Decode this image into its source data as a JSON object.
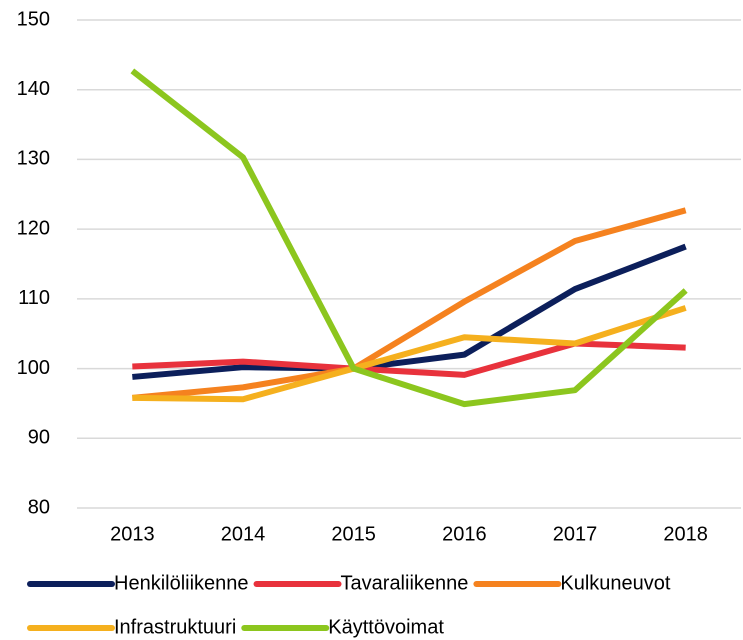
{
  "chart_data": {
    "type": "line",
    "categories": [
      "2013",
      "2014",
      "2015",
      "2016",
      "2017",
      "2018"
    ],
    "series": [
      {
        "name": "Henkilöliikenne",
        "color": "#0c1f5b",
        "values": [
          98.8,
          100.2,
          100,
          102,
          111.4,
          117.5
        ]
      },
      {
        "name": "Tavaraliikenne",
        "color": "#e8323c",
        "values": [
          100.3,
          101,
          100,
          99.1,
          103.6,
          103
        ]
      },
      {
        "name": "Kulkuneuvot",
        "color": "#f5821f",
        "values": [
          95.8,
          97.3,
          100,
          109.6,
          118.3,
          122.7
        ]
      },
      {
        "name": "Infrastruktuuri",
        "color": "#f5b01e",
        "values": [
          95.8,
          95.6,
          100,
          104.5,
          103.6,
          108.7
        ]
      },
      {
        "name": "Käyttövoimat",
        "color": "#8cc61e",
        "values": [
          142.7,
          130.3,
          100,
          94.9,
          96.9,
          111.2
        ]
      }
    ],
    "ylim": [
      80,
      150
    ],
    "yticks": [
      80,
      90,
      100,
      110,
      120,
      130,
      140,
      150
    ],
    "grid": true,
    "legend": "bottom"
  }
}
